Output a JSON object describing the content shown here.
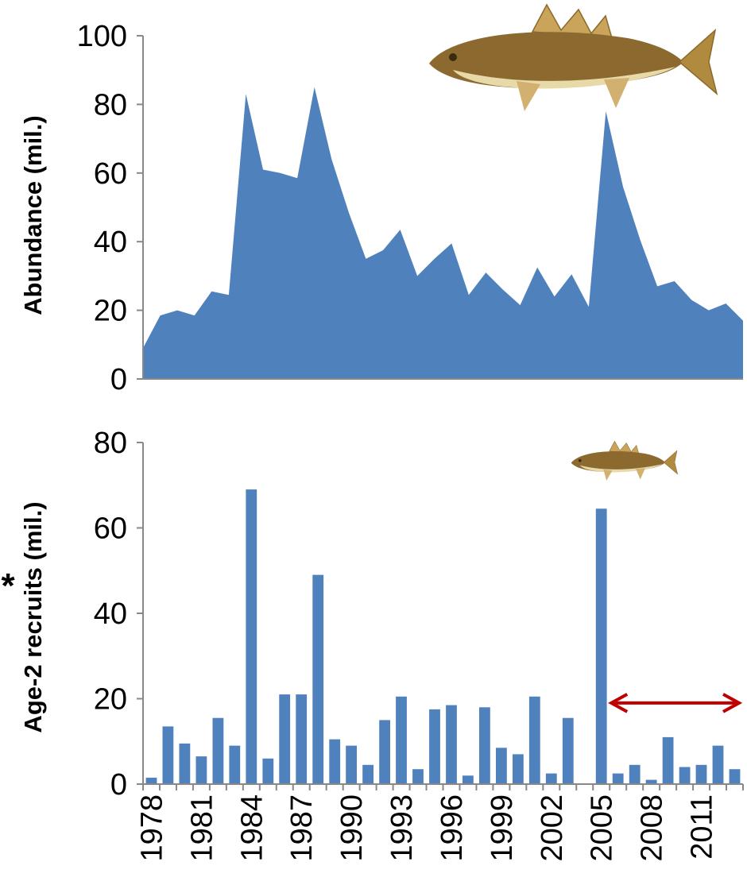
{
  "colors": {
    "series": "#4f81bd",
    "arrow": "#c00000",
    "axis": "#888888"
  },
  "chart_data": [
    {
      "type": "area",
      "title": "",
      "ylabel": "Abundance (mil.)",
      "ylim": [
        0,
        100
      ],
      "yticks": [
        "0",
        "20",
        "40",
        "60",
        "80",
        "100"
      ],
      "x": [
        1978,
        1979,
        1980,
        1981,
        1982,
        1983,
        1984,
        1985,
        1986,
        1987,
        1988,
        1989,
        1990,
        1991,
        1992,
        1993,
        1994,
        1995,
        1996,
        1997,
        1998,
        1999,
        2000,
        2001,
        2002,
        2003,
        2004,
        2005,
        2006,
        2007,
        2008,
        2009,
        2010,
        2011,
        2012,
        2013
      ],
      "values": [
        9,
        18.5,
        20,
        18.5,
        25.5,
        24.5,
        83,
        61,
        60,
        58.5,
        85,
        64,
        48.5,
        35,
        37.5,
        43.5,
        30,
        35,
        39.5,
        24.5,
        31,
        26,
        21.5,
        32.5,
        24,
        30.5,
        21,
        78,
        56,
        40.5,
        27,
        28.5,
        23,
        20,
        22,
        17
      ],
      "icon": "walleye-fish-icon"
    },
    {
      "type": "bar",
      "title": "",
      "ylabel": "Age-2 recruits (mil.)",
      "ylabel_marker": "*",
      "ylim": [
        0,
        80
      ],
      "yticks": [
        "0",
        "20",
        "40",
        "60",
        "80"
      ],
      "categories": [
        1978,
        1979,
        1980,
        1981,
        1982,
        1983,
        1984,
        1985,
        1986,
        1987,
        1988,
        1989,
        1990,
        1991,
        1992,
        1993,
        1994,
        1995,
        1996,
        1997,
        1998,
        1999,
        2000,
        2001,
        2002,
        2003,
        2004,
        2005,
        2006,
        2007,
        2008,
        2009,
        2010,
        2011,
        2012,
        2013
      ],
      "values": [
        1.5,
        13.5,
        9.5,
        6.5,
        15.5,
        9,
        69,
        6,
        21,
        21,
        49,
        10.5,
        9,
        4.5,
        15,
        20.5,
        3.5,
        17.5,
        18.5,
        2,
        18,
        8.5,
        7,
        20.5,
        2.5,
        15.5,
        0,
        64.5,
        2.5,
        4.5,
        1,
        11,
        4,
        4.5,
        9,
        3.5
      ],
      "xtick_labels": [
        "1978",
        "1981",
        "1984",
        "1987",
        "1990",
        "1993",
        "1996",
        "1999",
        "2002",
        "2005",
        "2008",
        "2011"
      ],
      "annotation": {
        "type": "double-arrow",
        "from_year": 2005,
        "to_year": 2013,
        "y": 19
      },
      "icon": "small-walleye-fish-icon"
    }
  ]
}
